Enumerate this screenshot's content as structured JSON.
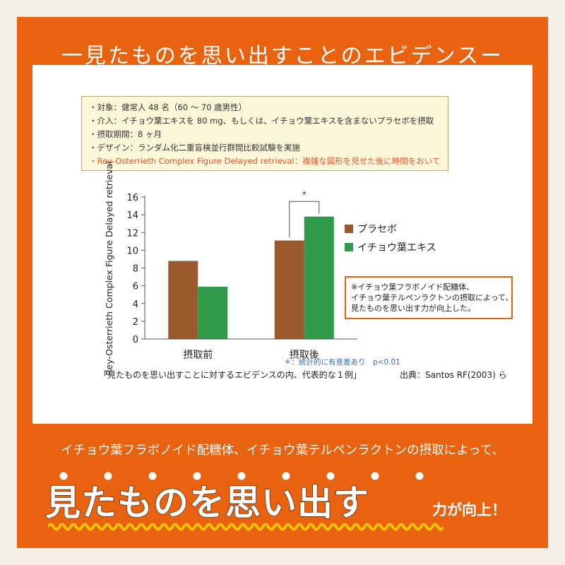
{
  "header": {
    "title": "一見たものを思い出すことのエビデンスー"
  },
  "study_box": {
    "lines": [
      "・対象：健常人 48 名（60 〜 70 歳男性）",
      "・介入：イチョウ葉エキスを 80 mg、もしくは、イチョウ葉エキスを含まないプラセボを摂取",
      "・摂取期間：8 ヶ月",
      "・デザイン：ランダム化二重盲検並行群間比較試験を実施",
      "・Rey-Osterrieth Complex Figure Delayed retrieval：複雑な図形を見せた後に時間をおいて、模写させるテスト"
    ],
    "highlight_color": "#e4572e"
  },
  "chart_data": {
    "type": "bar",
    "categories": [
      "摂取前",
      "摂取後"
    ],
    "series": [
      {
        "name": "プラセボ",
        "color": "#9a5a2b",
        "values": [
          8.8,
          11.1
        ]
      },
      {
        "name": "イチョウ葉エキス",
        "color": "#2e9a4a",
        "values": [
          5.9,
          13.8
        ]
      }
    ],
    "ylabel": "Rey-Osterrieth Complex Figure Delayed retrieval",
    "ylim": [
      0,
      16
    ],
    "yticks": [
      0,
      2,
      4,
      6,
      8,
      10,
      12,
      14,
      16
    ],
    "significance_marker": "*",
    "significance_note": "＊：統計的に有意差あり　p<0.01",
    "legend_position": "right",
    "annotation": {
      "lines": [
        "※イチョウ葉フラボノイド配糖体、",
        "イチョウ葉テルペンラクトンの摂取によって、",
        "見たものを思い出す力が向上した。"
      ],
      "border_color": "#e8620f"
    }
  },
  "caption": "「見たものを思い出すことに対するエビデンスの内、代表的な１例」",
  "source": "出典：Santos RF(2003) ら",
  "bottom": {
    "lead": "イチョウ葉フラボノイド配糖体、イチョウ葉テルペンラクトンの摂取によって、",
    "emphasis": "見たものを思い出す",
    "suffix": "力が向上！",
    "wave_color": "#f6c400"
  }
}
